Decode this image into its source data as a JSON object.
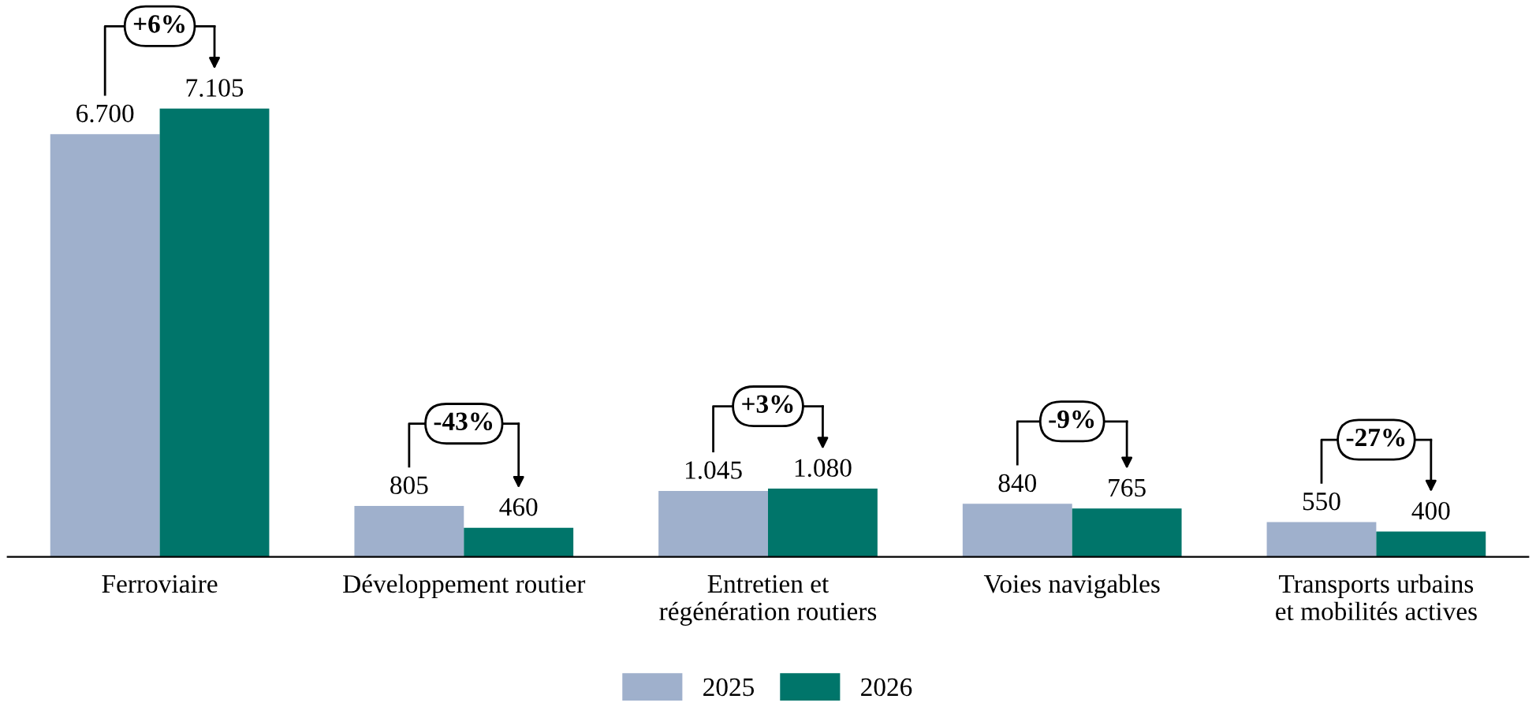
{
  "chart_data": {
    "type": "bar",
    "categories": [
      "Ferroviaire",
      "Développement routier",
      "Entretien et\nrégénération routiers",
      "Voies navigables",
      "Transports urbains\net mobilités actives"
    ],
    "series": [
      {
        "name": "2025",
        "color": "#9fb0cc",
        "values": [
          6700,
          805,
          1045,
          840,
          550
        ],
        "value_labels": [
          "6.700",
          "805",
          "1.045",
          "840",
          "550"
        ]
      },
      {
        "name": "2026",
        "color": "#00756a",
        "values": [
          7105,
          460,
          1080,
          765,
          400
        ],
        "value_labels": [
          "7.105",
          "460",
          "1.080",
          "765",
          "400"
        ]
      }
    ],
    "annotations": [
      "+6%",
      "-43%",
      "+3%",
      "-9%",
      "-27%"
    ],
    "legend": "bottom",
    "grid": false
  }
}
